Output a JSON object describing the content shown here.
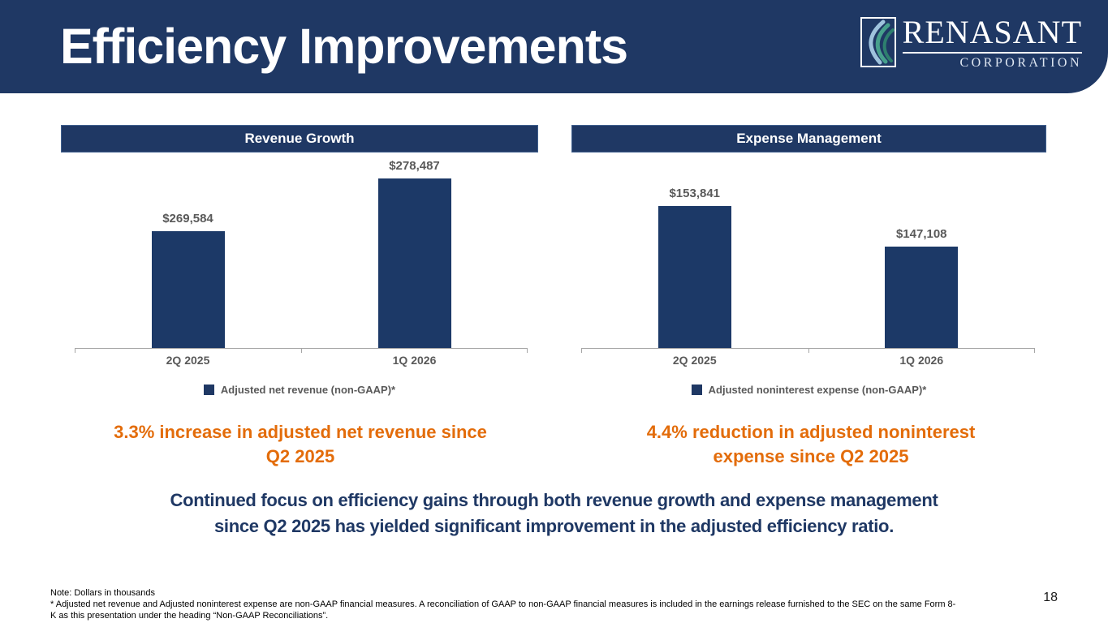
{
  "slide": {
    "title": "Efficiency Improvements",
    "page_number": "18"
  },
  "logo": {
    "wordmark": "RENASANT",
    "subtitle": "CORPORATION"
  },
  "colors": {
    "navy": "#1f3864",
    "bar_navy": "#1c3967",
    "orange": "#e36c0a",
    "gray_text": "#595959",
    "axis_gray": "#a6a6a6"
  },
  "chart_data": [
    {
      "type": "bar",
      "title": "Revenue Growth",
      "categories": [
        "2Q 2025",
        "1Q 2026"
      ],
      "values": [
        269584,
        278487
      ],
      "value_labels": [
        "$269,584",
        "$278,487"
      ],
      "legend": "Adjusted net revenue (non-GAAP)*",
      "ylim": [
        250000,
        283000
      ],
      "grid": false,
      "legend_position": "bottom-center",
      "units": "dollars in thousands"
    },
    {
      "type": "bar",
      "title": "Expense Management",
      "categories": [
        "2Q 2025",
        "1Q 2026"
      ],
      "values": [
        153841,
        147108
      ],
      "value_labels": [
        "$153,841",
        "$147,108"
      ],
      "legend": "Adjusted noninterest expense (non-GAAP)*",
      "ylim": [
        130000,
        163000
      ],
      "grid": false,
      "legend_position": "bottom-center",
      "units": "dollars in thousands"
    }
  ],
  "callouts": [
    {
      "line1": "3.3% increase in adjusted net revenue since",
      "line2": "Q2 2025"
    },
    {
      "line1": "4.4% reduction in adjusted noninterest",
      "line2": "expense since Q2 2025"
    }
  ],
  "key_message": {
    "line1": "Continued focus on efficiency gains through both revenue growth and expense management",
    "line2": "since Q2 2025 has yielded significant improvement in the adjusted efficiency ratio."
  },
  "footnote": {
    "line1": "Note: Dollars in thousands",
    "line2": "* Adjusted net revenue and Adjusted noninterest expense are non-GAAP financial measures. A reconciliation of GAAP to non-GAAP financial measures is included in the earnings release furnished to the SEC on the same Form 8-",
    "line3": "K as this presentation under the heading “Non-GAAP Reconciliations”."
  }
}
